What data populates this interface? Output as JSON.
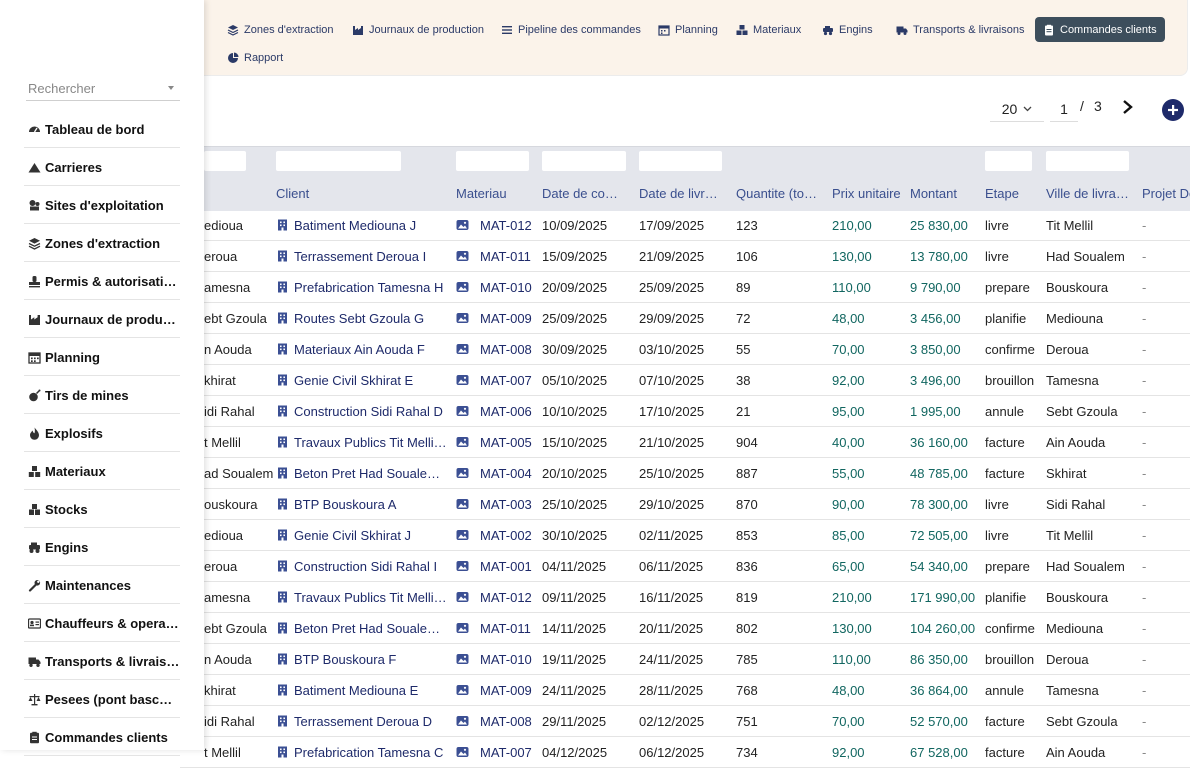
{
  "nav": {
    "items": [
      {
        "label": "Zones d'extraction",
        "icon": "layers-icon"
      },
      {
        "label": "Journaux de production",
        "icon": "chart-industry-icon"
      },
      {
        "label": "Pipeline des commandes",
        "icon": "list-icon"
      },
      {
        "label": "Planning",
        "icon": "calendar-icon"
      },
      {
        "label": "Materiaux",
        "icon": "cubes-icon"
      },
      {
        "label": "Engins",
        "icon": "vehicle-icon"
      },
      {
        "label": "Transports & livraisons",
        "icon": "truck-icon"
      },
      {
        "label": "Commandes clients",
        "icon": "clipboard-icon",
        "active": true
      },
      {
        "label": "Rapport",
        "icon": "pie-chart-icon"
      }
    ]
  },
  "pager": {
    "page_size": "20",
    "current_page": "1",
    "separator": "/",
    "total_pages": "3"
  },
  "sidebar": {
    "search_placeholder": "Rechercher",
    "items": [
      {
        "label": "Tableau de bord",
        "icon": "dashboard-icon"
      },
      {
        "label": "Carrieres",
        "icon": "mountain-icon"
      },
      {
        "label": "Sites d'exploitation",
        "icon": "map-pin-icon"
      },
      {
        "label": "Zones d'extraction",
        "icon": "layers-icon"
      },
      {
        "label": "Permis & autorisations",
        "icon": "stamp-icon"
      },
      {
        "label": "Journaux de production",
        "icon": "chart-industry-icon"
      },
      {
        "label": "Planning",
        "icon": "calendar-icon"
      },
      {
        "label": "Tirs de mines",
        "icon": "bomb-icon"
      },
      {
        "label": "Explosifs",
        "icon": "fire-icon"
      },
      {
        "label": "Materiaux",
        "icon": "cubes-icon"
      },
      {
        "label": "Stocks",
        "icon": "boxes-icon"
      },
      {
        "label": "Engins",
        "icon": "vehicle-icon"
      },
      {
        "label": "Maintenances",
        "icon": "wrench-icon"
      },
      {
        "label": "Chauffeurs & operateurs",
        "icon": "id-card-icon"
      },
      {
        "label": "Transports & livraisons",
        "icon": "truck-icon"
      },
      {
        "label": "Pesees (pont bascule)",
        "icon": "scale-icon"
      },
      {
        "label": "Commandes clients",
        "icon": "clipboard-icon"
      }
    ]
  },
  "table": {
    "columns": {
      "client": "Client",
      "materiau": "Materiau",
      "date_commande": "Date de commande",
      "date_livraison": "Date de livraison",
      "quantite": "Quantite (tonnes)",
      "prix_unitaire": "Prix unitaire",
      "montant": "Montant",
      "etape": "Etape",
      "ville": "Ville de livraison",
      "projet": "Projet De"
    },
    "rows": [
      {
        "lead": "edioua",
        "client": "Batiment Mediouna J",
        "materiau": "MAT-012",
        "date_commande": "10/09/2025",
        "date_livraison": "17/09/2025",
        "quantite": "123",
        "prix_unitaire": "210,00",
        "montant": "25 830,00",
        "etape": "livre",
        "ville": "Tit Mellil",
        "projet": "-"
      },
      {
        "lead": "eroua",
        "client": "Terrassement Deroua I",
        "materiau": "MAT-011",
        "date_commande": "15/09/2025",
        "date_livraison": "21/09/2025",
        "quantite": "106",
        "prix_unitaire": "130,00",
        "montant": "13 780,00",
        "etape": "livre",
        "ville": "Had Soualem",
        "projet": "-"
      },
      {
        "lead": "amesna",
        "client": "Prefabrication Tamesna H",
        "materiau": "MAT-010",
        "date_commande": "20/09/2025",
        "date_livraison": "25/09/2025",
        "quantite": "89",
        "prix_unitaire": "110,00",
        "montant": "9 790,00",
        "etape": "prepare",
        "ville": "Bouskoura",
        "projet": "-"
      },
      {
        "lead": "ebt Gzoula",
        "client": "Routes Sebt Gzoula G",
        "materiau": "MAT-009",
        "date_commande": "25/09/2025",
        "date_livraison": "29/09/2025",
        "quantite": "72",
        "prix_unitaire": "48,00",
        "montant": "3 456,00",
        "etape": "planifie",
        "ville": "Mediouna",
        "projet": "-"
      },
      {
        "lead": "n Aouda",
        "client": "Materiaux Ain Aouda F",
        "materiau": "MAT-008",
        "date_commande": "30/09/2025",
        "date_livraison": "03/10/2025",
        "quantite": "55",
        "prix_unitaire": "70,00",
        "montant": "3 850,00",
        "etape": "confirme",
        "ville": "Deroua",
        "projet": "-"
      },
      {
        "lead": "khirat",
        "client": "Genie Civil Skhirat E",
        "materiau": "MAT-007",
        "date_commande": "05/10/2025",
        "date_livraison": "07/10/2025",
        "quantite": "38",
        "prix_unitaire": "92,00",
        "montant": "3 496,00",
        "etape": "brouillon",
        "ville": "Tamesna",
        "projet": "-"
      },
      {
        "lead": "idi Rahal",
        "client": "Construction Sidi Rahal D",
        "materiau": "MAT-006",
        "date_commande": "10/10/2025",
        "date_livraison": "17/10/2025",
        "quantite": "21",
        "prix_unitaire": "95,00",
        "montant": "1 995,00",
        "etape": "annule",
        "ville": "Sebt Gzoula",
        "projet": "-"
      },
      {
        "lead": "t Mellil",
        "client": "Travaux Publics Tit Mellil C",
        "materiau": "MAT-005",
        "date_commande": "15/10/2025",
        "date_livraison": "21/10/2025",
        "quantite": "904",
        "prix_unitaire": "40,00",
        "montant": "36 160,00",
        "etape": "facture",
        "ville": "Ain Aouda",
        "projet": "-"
      },
      {
        "lead": "ad Soualem",
        "client": "Beton Pret Had Soualem B",
        "materiau": "MAT-004",
        "date_commande": "20/10/2025",
        "date_livraison": "25/10/2025",
        "quantite": "887",
        "prix_unitaire": "55,00",
        "montant": "48 785,00",
        "etape": "facture",
        "ville": "Skhirat",
        "projet": "-"
      },
      {
        "lead": "ouskoura",
        "client": "BTP Bouskoura A",
        "materiau": "MAT-003",
        "date_commande": "25/10/2025",
        "date_livraison": "29/10/2025",
        "quantite": "870",
        "prix_unitaire": "90,00",
        "montant": "78 300,00",
        "etape": "livre",
        "ville": "Sidi Rahal",
        "projet": "-"
      },
      {
        "lead": "edioua",
        "client": "Genie Civil Skhirat J",
        "materiau": "MAT-002",
        "date_commande": "30/10/2025",
        "date_livraison": "02/11/2025",
        "quantite": "853",
        "prix_unitaire": "85,00",
        "montant": "72 505,00",
        "etape": "livre",
        "ville": "Tit Mellil",
        "projet": "-"
      },
      {
        "lead": "eroua",
        "client": "Construction Sidi Rahal I",
        "materiau": "MAT-001",
        "date_commande": "04/11/2025",
        "date_livraison": "06/11/2025",
        "quantite": "836",
        "prix_unitaire": "65,00",
        "montant": "54 340,00",
        "etape": "prepare",
        "ville": "Had Soualem",
        "projet": "-"
      },
      {
        "lead": "amesna",
        "client": "Travaux Publics Tit Mellil H",
        "materiau": "MAT-012",
        "date_commande": "09/11/2025",
        "date_livraison": "16/11/2025",
        "quantite": "819",
        "prix_unitaire": "210,00",
        "montant": "171 990,00",
        "etape": "planifie",
        "ville": "Bouskoura",
        "projet": "-"
      },
      {
        "lead": "ebt Gzoula",
        "client": "Beton Pret Had Soualem G",
        "materiau": "MAT-011",
        "date_commande": "14/11/2025",
        "date_livraison": "20/11/2025",
        "quantite": "802",
        "prix_unitaire": "130,00",
        "montant": "104 260,00",
        "etape": "confirme",
        "ville": "Mediouna",
        "projet": "-"
      },
      {
        "lead": "n Aouda",
        "client": "BTP Bouskoura F",
        "materiau": "MAT-010",
        "date_commande": "19/11/2025",
        "date_livraison": "24/11/2025",
        "quantite": "785",
        "prix_unitaire": "110,00",
        "montant": "86 350,00",
        "etape": "brouillon",
        "ville": "Deroua",
        "projet": "-"
      },
      {
        "lead": "khirat",
        "client": "Batiment Mediouna E",
        "materiau": "MAT-009",
        "date_commande": "24/11/2025",
        "date_livraison": "28/11/2025",
        "quantite": "768",
        "prix_unitaire": "48,00",
        "montant": "36 864,00",
        "etape": "annule",
        "ville": "Tamesna",
        "projet": "-"
      },
      {
        "lead": "idi Rahal",
        "client": "Terrassement Deroua D",
        "materiau": "MAT-008",
        "date_commande": "29/11/2025",
        "date_livraison": "02/12/2025",
        "quantite": "751",
        "prix_unitaire": "70,00",
        "montant": "52 570,00",
        "etape": "facture",
        "ville": "Sebt Gzoula",
        "projet": "-"
      },
      {
        "lead": "t Mellil",
        "client": "Prefabrication Tamesna C",
        "materiau": "MAT-007",
        "date_commande": "04/12/2025",
        "date_livraison": "06/12/2025",
        "quantite": "734",
        "prix_unitaire": "92,00",
        "montant": "67 528,00",
        "etape": "facture",
        "ville": "Ain Aouda",
        "projet": "-"
      }
    ]
  }
}
